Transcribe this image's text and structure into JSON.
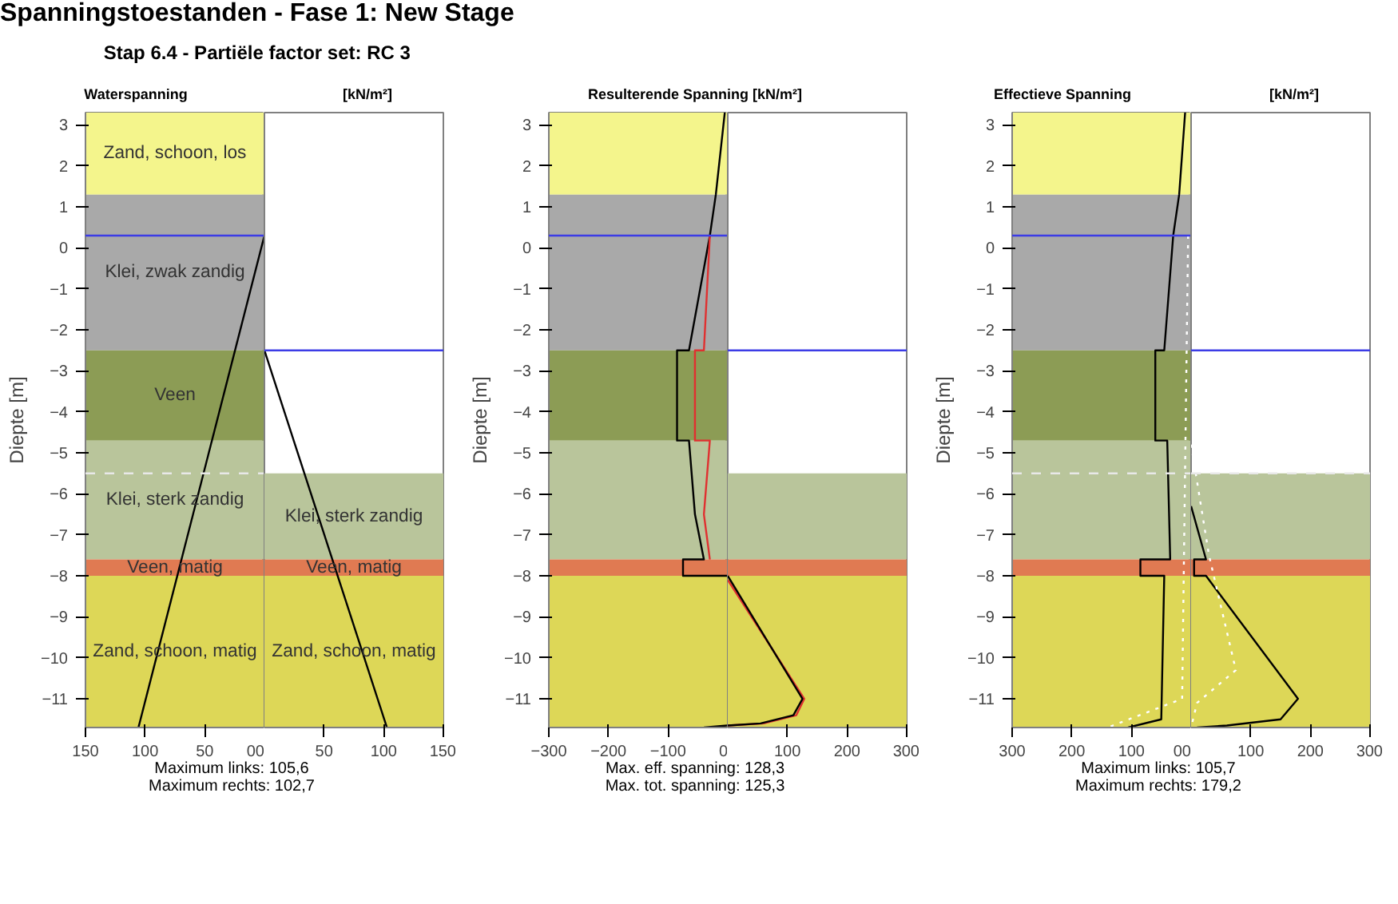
{
  "chart_data": [
    {
      "type": "other",
      "title": "Spanningstoestanden - Fase 1: New Stage",
      "subtitle": "Stap 6.4 - Partiële factor set: RC 3"
    },
    {
      "type": "line",
      "title": "Waterspanning",
      "ylabel": "Diepte [m]",
      "xlim": [
        -150,
        0
      ],
      "ylim": [
        -11.7,
        3.3
      ],
      "xticks": [
        {
          "value": -150,
          "label": "150"
        },
        {
          "value": -100,
          "label": "100"
        },
        {
          "value": -50,
          "label": "50"
        },
        {
          "value": 0,
          "label": "00"
        }
      ],
      "yticks": [
        -11,
        -10,
        -9,
        -8,
        -7,
        -6,
        -5,
        -4,
        -3,
        -2,
        -1,
        0,
        1,
        2,
        3
      ],
      "bands": [
        {
          "axis": "y",
          "from": 1.3,
          "to": 3.3,
          "label": "Zand, schoon, los",
          "color": "#f4f58c"
        },
        {
          "axis": "y",
          "from": -2.5,
          "to": 1.3,
          "label": "Klei, zwak zandig",
          "color": "#a9a9a9"
        },
        {
          "axis": "y",
          "from": -4.7,
          "to": -2.5,
          "label": "Veen",
          "color": "#8c9c55"
        },
        {
          "axis": "y",
          "from": -7.6,
          "to": -4.7,
          "label": "Klei, sterk zandig",
          "color": "#b9c59b"
        },
        {
          "axis": "y",
          "from": -8.0,
          "to": -7.6,
          "label": "Veen, matig",
          "color": "#e07a52"
        },
        {
          "axis": "y",
          "from": -11.7,
          "to": -8.0,
          "label": "Zand, schoon, matig",
          "color": "#ddd757"
        }
      ],
      "ref_lines": [
        {
          "axis": "y",
          "value": 0.3,
          "color": "#3c3ce6",
          "line_style": "solid"
        },
        {
          "axis": "y",
          "value": -5.5,
          "color": "#e8e8e8",
          "line_style": "dashed"
        }
      ],
      "series": [
        {
          "color": "#000000",
          "x": [
            0,
            -105.6
          ],
          "values": [
            0.3,
            -11.7
          ]
        }
      ],
      "annotations": [
        "Maximum links: 105,6",
        "Maximum rechts: 102,7"
      ]
    },
    {
      "type": "line",
      "title": "[kN/m²]",
      "xlim": [
        0,
        150
      ],
      "ylim": [
        -11.7,
        3.3
      ],
      "tick_labels": "x",
      "xticks": [
        50,
        100,
        150
      ],
      "bands": [
        {
          "axis": "y",
          "from": -7.6,
          "to": -5.5,
          "label": "Klei, sterk zandig",
          "color": "#b9c59b"
        },
        {
          "axis": "y",
          "from": -8.0,
          "to": -7.6,
          "label": "Veen, matig",
          "color": "#e07a52"
        },
        {
          "axis": "y",
          "from": -11.7,
          "to": -8.0,
          "label": "Zand, schoon, matig",
          "color": "#ddd757"
        }
      ],
      "ref_lines": [
        {
          "axis": "y",
          "value": -2.5,
          "color": "#3c3ce6",
          "line_style": "solid"
        }
      ],
      "series": [
        {
          "color": "#000000",
          "x": [
            0,
            102.7
          ],
          "values": [
            -2.5,
            -11.7
          ]
        }
      ]
    },
    {
      "type": "line",
      "title": "Resulterende Spanning [kN/m²]",
      "ylabel": "Diepte [m]",
      "xlim": [
        -300,
        0
      ],
      "ylim": [
        -11.7,
        3.3
      ],
      "xticks": [
        -300,
        -200,
        -100,
        0
      ],
      "yticks": [
        -11,
        -10,
        -9,
        -8,
        -7,
        -6,
        -5,
        -4,
        -3,
        -2,
        -1,
        0,
        1,
        2,
        3
      ],
      "bands": [
        {
          "axis": "y",
          "from": 1.3,
          "to": 3.3,
          "color": "#f4f58c"
        },
        {
          "axis": "y",
          "from": -2.5,
          "to": 1.3,
          "color": "#a9a9a9"
        },
        {
          "axis": "y",
          "from": -4.7,
          "to": -2.5,
          "color": "#8c9c55"
        },
        {
          "axis": "y",
          "from": -7.6,
          "to": -4.7,
          "color": "#b9c59b"
        },
        {
          "axis": "y",
          "from": -8.0,
          "to": -7.6,
          "color": "#e07a52"
        },
        {
          "axis": "y",
          "from": -11.7,
          "to": -8.0,
          "color": "#ddd757"
        }
      ],
      "ref_lines": [
        {
          "axis": "y",
          "value": 0.3,
          "color": "#3c3ce6",
          "line_style": "solid"
        }
      ],
      "series": [
        {
          "color": "#000000",
          "x": [
            -5,
            -20,
            -30,
            -65,
            -85,
            -85,
            -65,
            -55,
            -40,
            -75,
            -75,
            0
          ],
          "values": [
            3.3,
            1.3,
            0.3,
            -2.5,
            -2.5,
            -4.7,
            -4.7,
            -6.5,
            -7.6,
            -7.6,
            -8.0,
            -8.0
          ]
        },
        {
          "color": "#e03030",
          "x": [
            -30,
            -40,
            -55,
            -55,
            -30,
            -40,
            -30
          ],
          "values": [
            0.3,
            -2.5,
            -2.5,
            -4.7,
            -4.7,
            -6.5,
            -7.6
          ]
        },
        {
          "color": "#000000",
          "x": [
            0,
            -40
          ],
          "values": [
            -11.65,
            -11.7
          ]
        }
      ],
      "annotations": [
        "Max. eff. spanning: 128,3",
        "Max. tot. spanning: 125,3"
      ]
    },
    {
      "type": "line",
      "xlim": [
        0,
        300
      ],
      "ylim": [
        -11.7,
        3.3
      ],
      "tick_labels": "x",
      "xticks": [
        100,
        200,
        300
      ],
      "bands": [
        {
          "axis": "y",
          "from": -7.6,
          "to": -5.5,
          "color": "#b9c59b"
        },
        {
          "axis": "y",
          "from": -8.0,
          "to": -7.6,
          "color": "#e07a52"
        },
        {
          "axis": "y",
          "from": -11.7,
          "to": -8.0,
          "color": "#ddd757"
        }
      ],
      "ref_lines": [
        {
          "axis": "y",
          "value": -2.5,
          "color": "#3c3ce6",
          "line_style": "solid"
        }
      ],
      "series": [
        {
          "color": "#e03030",
          "x": [
            0,
            128.3,
            115,
            60,
            0
          ],
          "values": [
            -8.1,
            -11.0,
            -11.4,
            -11.6,
            -11.65
          ]
        },
        {
          "color": "#000000",
          "x": [
            0,
            125.3,
            110,
            55,
            0
          ],
          "values": [
            -8.0,
            -11.0,
            -11.4,
            -11.6,
            -11.65
          ]
        }
      ]
    },
    {
      "type": "line",
      "title": "Effectieve Spanning",
      "ylabel": "Diepte [m]",
      "xlim": [
        -300,
        0
      ],
      "ylim": [
        -11.7,
        3.3
      ],
      "xticks": [
        {
          "value": -300,
          "label": "300"
        },
        {
          "value": -200,
          "label": "200"
        },
        {
          "value": -100,
          "label": "100"
        },
        {
          "value": 0,
          "label": "00"
        }
      ],
      "yticks": [
        -11,
        -10,
        -9,
        -8,
        -7,
        -6,
        -5,
        -4,
        -3,
        -2,
        -1,
        0,
        1,
        2,
        3
      ],
      "bands": [
        {
          "axis": "y",
          "from": 1.3,
          "to": 3.3,
          "color": "#f4f58c"
        },
        {
          "axis": "y",
          "from": -2.5,
          "to": 1.3,
          "color": "#a9a9a9"
        },
        {
          "axis": "y",
          "from": -4.7,
          "to": -2.5,
          "color": "#8c9c55"
        },
        {
          "axis": "y",
          "from": -7.6,
          "to": -4.7,
          "color": "#b9c59b"
        },
        {
          "axis": "y",
          "from": -8.0,
          "to": -7.6,
          "color": "#e07a52"
        },
        {
          "axis": "y",
          "from": -11.7,
          "to": -8.0,
          "color": "#ddd757"
        }
      ],
      "ref_lines": [
        {
          "axis": "y",
          "value": 0.3,
          "color": "#3c3ce6",
          "line_style": "solid"
        },
        {
          "axis": "y",
          "value": -5.5,
          "color": "#e8e8e8",
          "line_style": "dashed"
        }
      ],
      "series": [
        {
          "color": "#000000",
          "x": [
            -10,
            -20,
            -30,
            -45,
            -60,
            -60,
            -40,
            -35,
            -85,
            -85,
            -45,
            -50,
            -105.7
          ],
          "values": [
            3.3,
            1.3,
            0.3,
            -2.5,
            -2.5,
            -4.7,
            -4.7,
            -7.6,
            -7.6,
            -8.0,
            -8.0,
            -11.5,
            -11.7
          ]
        },
        {
          "color": "#ffffff",
          "line_style": "dotted",
          "x": [
            -5,
            -15,
            -140
          ],
          "values": [
            0.3,
            -11.0,
            -11.7
          ]
        }
      ],
      "annotations": [
        "Maximum links: 105,7",
        "Maximum rechts: 179,2"
      ]
    },
    {
      "type": "line",
      "title": "[kN/m²]",
      "xlim": [
        0,
        300
      ],
      "ylim": [
        -11.7,
        3.3
      ],
      "tick_labels": "x",
      "xticks": [
        100,
        200,
        300
      ],
      "bands": [
        {
          "axis": "y",
          "from": -7.6,
          "to": -5.5,
          "color": "#b9c59b"
        },
        {
          "axis": "y",
          "from": -8.0,
          "to": -7.6,
          "color": "#e07a52"
        },
        {
          "axis": "y",
          "from": -11.7,
          "to": -8.0,
          "color": "#ddd757"
        }
      ],
      "ref_lines": [
        {
          "axis": "y",
          "value": -2.5,
          "color": "#3c3ce6",
          "line_style": "solid"
        },
        {
          "axis": "y",
          "value": -5.5,
          "color": "#e8e8e8",
          "line_style": "dashed"
        }
      ],
      "series": [
        {
          "color": "#000000",
          "x": [
            0,
            25,
            5,
            5,
            25,
            179.2,
            150,
            60,
            10
          ],
          "values": [
            -6.3,
            -7.6,
            -7.6,
            -8.0,
            -8.0,
            -11.0,
            -11.5,
            -11.65,
            -11.7
          ]
        },
        {
          "color": "#ffffff",
          "line_style": "dotted",
          "x": [
            0,
            30,
            75,
            10,
            0
          ],
          "values": [
            -4.8,
            -7.5,
            -10.3,
            -11.1,
            -11.7
          ]
        }
      ]
    }
  ]
}
